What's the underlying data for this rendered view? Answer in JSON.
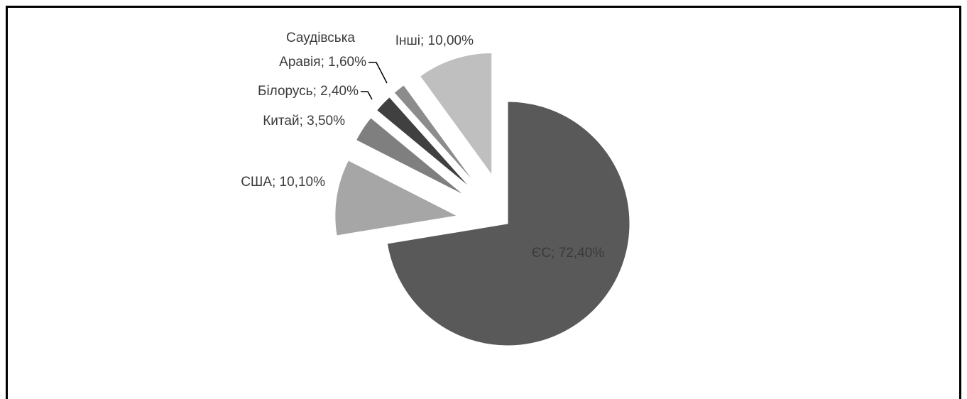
{
  "chart_data": {
    "type": "pie",
    "values": [
      72.4,
      10.1,
      3.5,
      2.4,
      1.6,
      10.0
    ],
    "value_labels": [
      "ЄС; 72,40%",
      "США; 10,10%",
      "Китай; 3,50%",
      "Білорусь; 2,40%",
      "Саудівська Аравія; 1,60%",
      "Інші; 10,00%"
    ],
    "colors": [
      "#595959",
      "#a6a6a6",
      "#7f7f7f",
      "#404040",
      "#8c8c8c",
      "#bfbfbf"
    ]
  }
}
